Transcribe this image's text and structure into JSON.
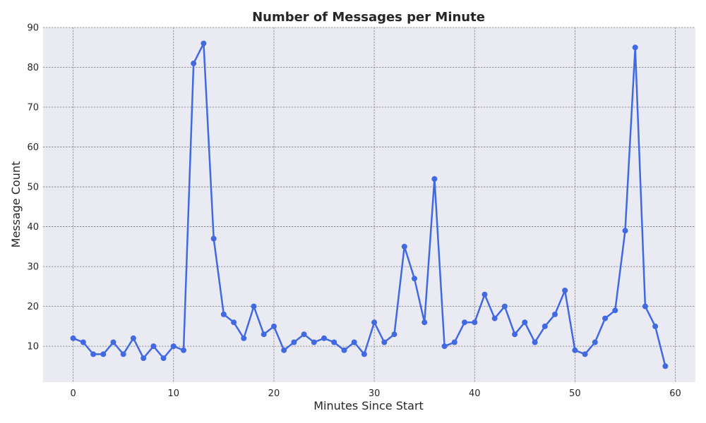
{
  "chart_data": {
    "type": "line",
    "title": "Number of Messages per Minute",
    "xlabel": "Minutes Since Start",
    "ylabel": "Message Count",
    "xlim": [
      -3,
      62
    ],
    "ylim": [
      1,
      90
    ],
    "xticks": [
      0,
      10,
      20,
      30,
      40,
      50,
      60
    ],
    "yticks": [
      10,
      20,
      30,
      40,
      50,
      60,
      70,
      80,
      90
    ],
    "grid": true,
    "line_color": "#4169e1",
    "background_color": "#eaeaf2",
    "x": [
      0,
      1,
      2,
      3,
      4,
      5,
      6,
      7,
      8,
      9,
      10,
      11,
      12,
      13,
      14,
      15,
      16,
      17,
      18,
      19,
      20,
      21,
      22,
      23,
      24,
      25,
      26,
      27,
      28,
      29,
      30,
      31,
      32,
      33,
      34,
      35,
      36,
      37,
      38,
      39,
      40,
      41,
      42,
      43,
      44,
      45,
      46,
      47,
      48,
      49,
      50,
      51,
      52,
      53,
      54,
      55,
      56,
      57,
      58,
      59
    ],
    "values": [
      12,
      11,
      8,
      8,
      11,
      8,
      12,
      7,
      10,
      7,
      10,
      9,
      81,
      86,
      37,
      18,
      16,
      12,
      20,
      13,
      15,
      9,
      11,
      13,
      11,
      12,
      11,
      9,
      11,
      8,
      16,
      11,
      13,
      35,
      27,
      16,
      52,
      10,
      11,
      16,
      16,
      23,
      17,
      20,
      13,
      16,
      11,
      15,
      18,
      24,
      9,
      8,
      11,
      17,
      19,
      39,
      85,
      20,
      15,
      5
    ]
  }
}
